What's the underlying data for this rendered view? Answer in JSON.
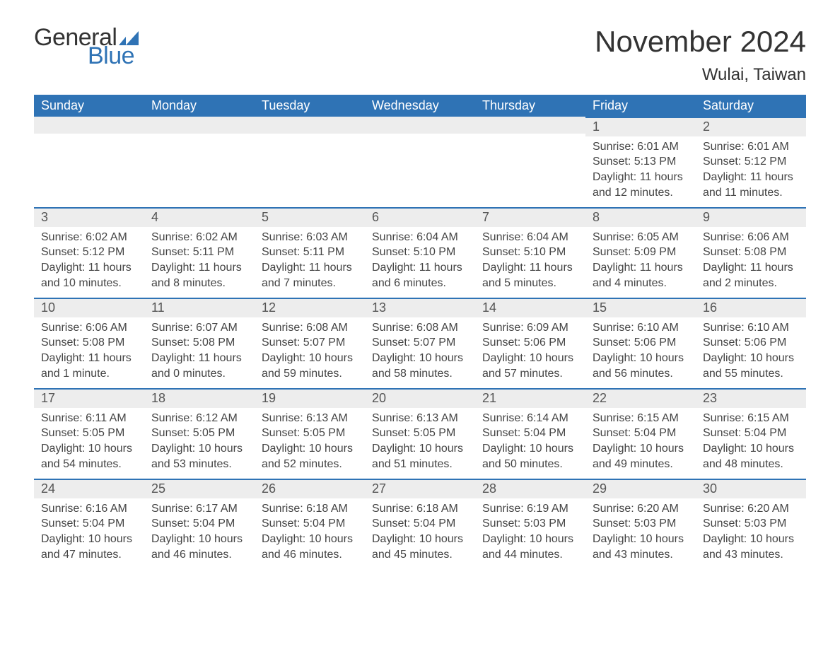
{
  "logo": {
    "word1": "General",
    "word2": "Blue",
    "mark_color": "#2f73b5"
  },
  "title": "November 2024",
  "subtitle": "Wulai, Taiwan",
  "colors": {
    "header_bg": "#2f73b5",
    "header_text": "#ffffff",
    "dayhead_bg": "#ededed",
    "dayhead_border": "#2f73b5",
    "body_text": "#444444",
    "page_bg": "#ffffff"
  },
  "weekdays": [
    "Sunday",
    "Monday",
    "Tuesday",
    "Wednesday",
    "Thursday",
    "Friday",
    "Saturday"
  ],
  "weeks": [
    [
      null,
      null,
      null,
      null,
      null,
      {
        "n": "1",
        "sunrise": "6:01 AM",
        "sunset": "5:13 PM",
        "daylight": "11 hours and 12 minutes."
      },
      {
        "n": "2",
        "sunrise": "6:01 AM",
        "sunset": "5:12 PM",
        "daylight": "11 hours and 11 minutes."
      }
    ],
    [
      {
        "n": "3",
        "sunrise": "6:02 AM",
        "sunset": "5:12 PM",
        "daylight": "11 hours and 10 minutes."
      },
      {
        "n": "4",
        "sunrise": "6:02 AM",
        "sunset": "5:11 PM",
        "daylight": "11 hours and 8 minutes."
      },
      {
        "n": "5",
        "sunrise": "6:03 AM",
        "sunset": "5:11 PM",
        "daylight": "11 hours and 7 minutes."
      },
      {
        "n": "6",
        "sunrise": "6:04 AM",
        "sunset": "5:10 PM",
        "daylight": "11 hours and 6 minutes."
      },
      {
        "n": "7",
        "sunrise": "6:04 AM",
        "sunset": "5:10 PM",
        "daylight": "11 hours and 5 minutes."
      },
      {
        "n": "8",
        "sunrise": "6:05 AM",
        "sunset": "5:09 PM",
        "daylight": "11 hours and 4 minutes."
      },
      {
        "n": "9",
        "sunrise": "6:06 AM",
        "sunset": "5:08 PM",
        "daylight": "11 hours and 2 minutes."
      }
    ],
    [
      {
        "n": "10",
        "sunrise": "6:06 AM",
        "sunset": "5:08 PM",
        "daylight": "11 hours and 1 minute."
      },
      {
        "n": "11",
        "sunrise": "6:07 AM",
        "sunset": "5:08 PM",
        "daylight": "11 hours and 0 minutes."
      },
      {
        "n": "12",
        "sunrise": "6:08 AM",
        "sunset": "5:07 PM",
        "daylight": "10 hours and 59 minutes."
      },
      {
        "n": "13",
        "sunrise": "6:08 AM",
        "sunset": "5:07 PM",
        "daylight": "10 hours and 58 minutes."
      },
      {
        "n": "14",
        "sunrise": "6:09 AM",
        "sunset": "5:06 PM",
        "daylight": "10 hours and 57 minutes."
      },
      {
        "n": "15",
        "sunrise": "6:10 AM",
        "sunset": "5:06 PM",
        "daylight": "10 hours and 56 minutes."
      },
      {
        "n": "16",
        "sunrise": "6:10 AM",
        "sunset": "5:06 PM",
        "daylight": "10 hours and 55 minutes."
      }
    ],
    [
      {
        "n": "17",
        "sunrise": "6:11 AM",
        "sunset": "5:05 PM",
        "daylight": "10 hours and 54 minutes."
      },
      {
        "n": "18",
        "sunrise": "6:12 AM",
        "sunset": "5:05 PM",
        "daylight": "10 hours and 53 minutes."
      },
      {
        "n": "19",
        "sunrise": "6:13 AM",
        "sunset": "5:05 PM",
        "daylight": "10 hours and 52 minutes."
      },
      {
        "n": "20",
        "sunrise": "6:13 AM",
        "sunset": "5:05 PM",
        "daylight": "10 hours and 51 minutes."
      },
      {
        "n": "21",
        "sunrise": "6:14 AM",
        "sunset": "5:04 PM",
        "daylight": "10 hours and 50 minutes."
      },
      {
        "n": "22",
        "sunrise": "6:15 AM",
        "sunset": "5:04 PM",
        "daylight": "10 hours and 49 minutes."
      },
      {
        "n": "23",
        "sunrise": "6:15 AM",
        "sunset": "5:04 PM",
        "daylight": "10 hours and 48 minutes."
      }
    ],
    [
      {
        "n": "24",
        "sunrise": "6:16 AM",
        "sunset": "5:04 PM",
        "daylight": "10 hours and 47 minutes."
      },
      {
        "n": "25",
        "sunrise": "6:17 AM",
        "sunset": "5:04 PM",
        "daylight": "10 hours and 46 minutes."
      },
      {
        "n": "26",
        "sunrise": "6:18 AM",
        "sunset": "5:04 PM",
        "daylight": "10 hours and 46 minutes."
      },
      {
        "n": "27",
        "sunrise": "6:18 AM",
        "sunset": "5:04 PM",
        "daylight": "10 hours and 45 minutes."
      },
      {
        "n": "28",
        "sunrise": "6:19 AM",
        "sunset": "5:03 PM",
        "daylight": "10 hours and 44 minutes."
      },
      {
        "n": "29",
        "sunrise": "6:20 AM",
        "sunset": "5:03 PM",
        "daylight": "10 hours and 43 minutes."
      },
      {
        "n": "30",
        "sunrise": "6:20 AM",
        "sunset": "5:03 PM",
        "daylight": "10 hours and 43 minutes."
      }
    ]
  ],
  "labels": {
    "sunrise": "Sunrise:",
    "sunset": "Sunset:",
    "daylight": "Daylight:"
  }
}
